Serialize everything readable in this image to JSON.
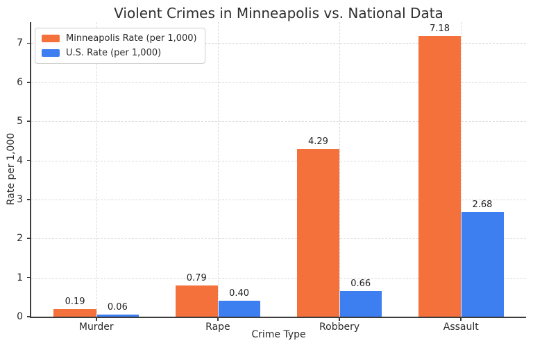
{
  "chart_data": {
    "type": "bar",
    "title": "Violent Crimes in Minneapolis vs. National Data",
    "xlabel": "Crime Type",
    "ylabel": "Rate per 1,000",
    "categories": [
      "Murder",
      "Rape",
      "Robbery",
      "Assault"
    ],
    "series": [
      {
        "name": "Minneapolis Rate (per 1,000)",
        "color": "#F4713B",
        "values": [
          0.19,
          0.79,
          4.29,
          7.18
        ]
      },
      {
        "name": "U.S. Rate (per 1,000)",
        "color": "#3D7EF0",
        "values": [
          0.06,
          0.4,
          0.66,
          2.68
        ]
      }
    ],
    "value_labels": [
      "0.19",
      "0.79",
      "4.29",
      "7.18",
      "0.06",
      "0.40",
      "0.66",
      "2.68"
    ],
    "y_ticks": [
      0,
      1,
      2,
      3,
      4,
      5,
      6,
      7
    ],
    "ylim": [
      0,
      7.54
    ],
    "xlim": [
      -0.535,
      3.535
    ],
    "bar_width": 0.35,
    "grid": true,
    "grid_style": "dashed",
    "legend_position": "upper-left",
    "value_label_format": ".2f"
  }
}
